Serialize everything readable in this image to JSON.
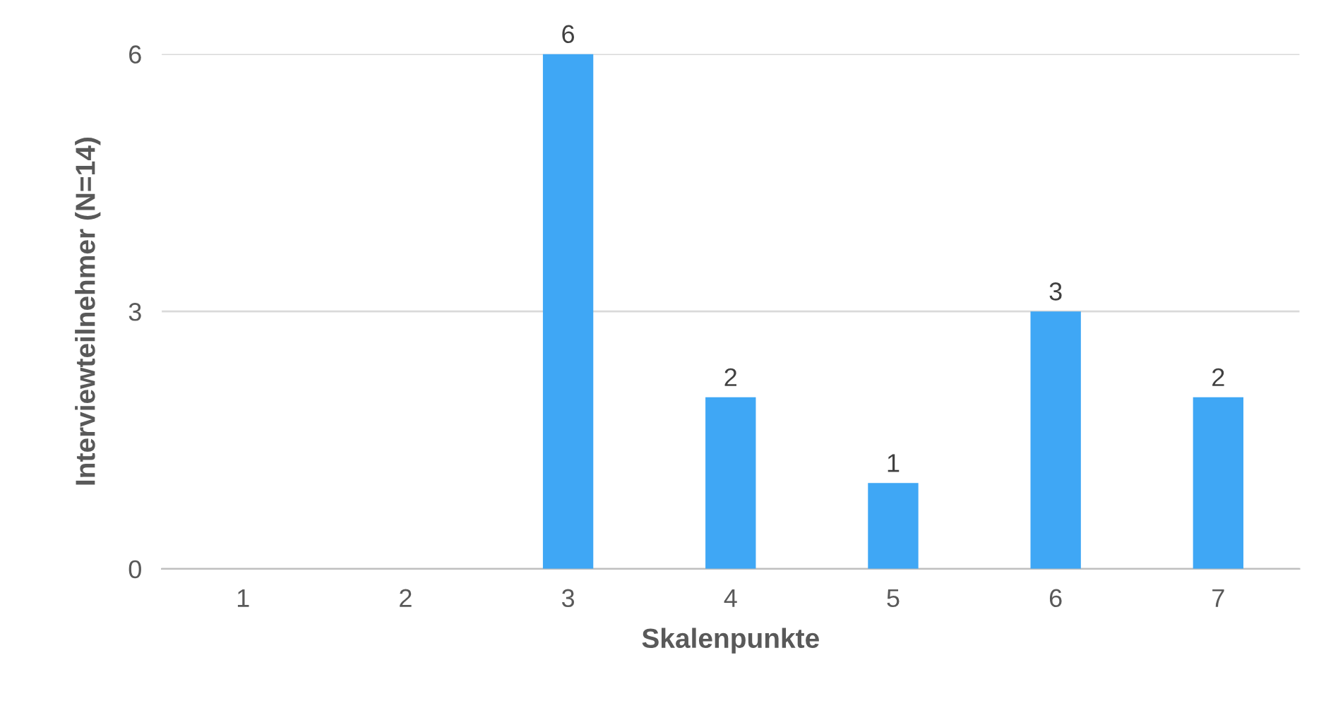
{
  "chart_data": {
    "type": "bar",
    "xlabel": "Skalenpunkte",
    "ylabel": "Interviewteilnehmer (N=14)",
    "categories": [
      "1",
      "2",
      "3",
      "4",
      "5",
      "6",
      "7"
    ],
    "values": [
      0,
      0,
      6,
      2,
      1,
      3,
      2
    ],
    "value_labels": [
      null,
      null,
      "6",
      "2",
      "1",
      "3",
      "2"
    ],
    "color": "#3fa7f5",
    "ylim": [
      0,
      6
    ],
    "yticks": [
      0,
      3,
      6
    ],
    "grid": "y",
    "legend": false
  }
}
